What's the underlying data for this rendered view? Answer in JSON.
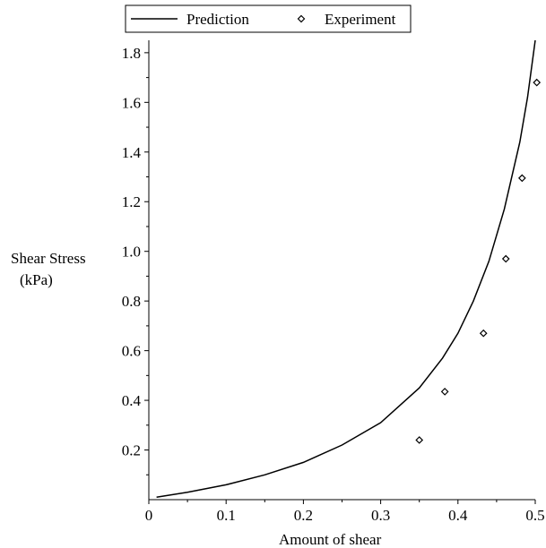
{
  "chart_data": {
    "type": "scatter",
    "title": "",
    "xlabel": "Amount of shear",
    "ylabel_lines": [
      "Shear Stress",
      "(kPa)"
    ],
    "xlim": [
      0,
      0.5
    ],
    "ylim": [
      0,
      1.85
    ],
    "x_ticks": [
      {
        "value": 0,
        "label": "0"
      },
      {
        "value": 0.1,
        "label": "0.1"
      },
      {
        "value": 0.2,
        "label": "0.2"
      },
      {
        "value": 0.3,
        "label": "0.3"
      },
      {
        "value": 0.4,
        "label": "0.4"
      },
      {
        "value": 0.5,
        "label": "0.5"
      }
    ],
    "y_ticks": [
      {
        "value": 0.2,
        "label": "0.2"
      },
      {
        "value": 0.4,
        "label": "0.4"
      },
      {
        "value": 0.6,
        "label": "0.6"
      },
      {
        "value": 0.8,
        "label": "0.8"
      },
      {
        "value": 1.0,
        "label": "1.0"
      },
      {
        "value": 1.2,
        "label": "1.2"
      },
      {
        "value": 1.4,
        "label": "1.4"
      },
      {
        "value": 1.6,
        "label": "1.6"
      },
      {
        "value": 1.8,
        "label": "1.8"
      }
    ],
    "grid": false,
    "legend_position": "top",
    "series": [
      {
        "name": "Prediction",
        "style": "line",
        "color": "#000000",
        "x": [
          0.01,
          0.05,
          0.1,
          0.15,
          0.2,
          0.25,
          0.3,
          0.35,
          0.38,
          0.4,
          0.42,
          0.44,
          0.46,
          0.48,
          0.49,
          0.5
        ],
        "y": [
          0.01,
          0.03,
          0.06,
          0.1,
          0.15,
          0.22,
          0.31,
          0.45,
          0.57,
          0.67,
          0.8,
          0.96,
          1.17,
          1.44,
          1.62,
          1.85
        ]
      },
      {
        "name": "Experiment",
        "style": "markers",
        "marker": "diamond",
        "color": "#000000",
        "x": [
          0.35,
          0.383,
          0.433,
          0.462,
          0.483,
          0.502
        ],
        "y": [
          0.24,
          0.435,
          0.67,
          0.97,
          1.295,
          1.68
        ]
      }
    ]
  }
}
